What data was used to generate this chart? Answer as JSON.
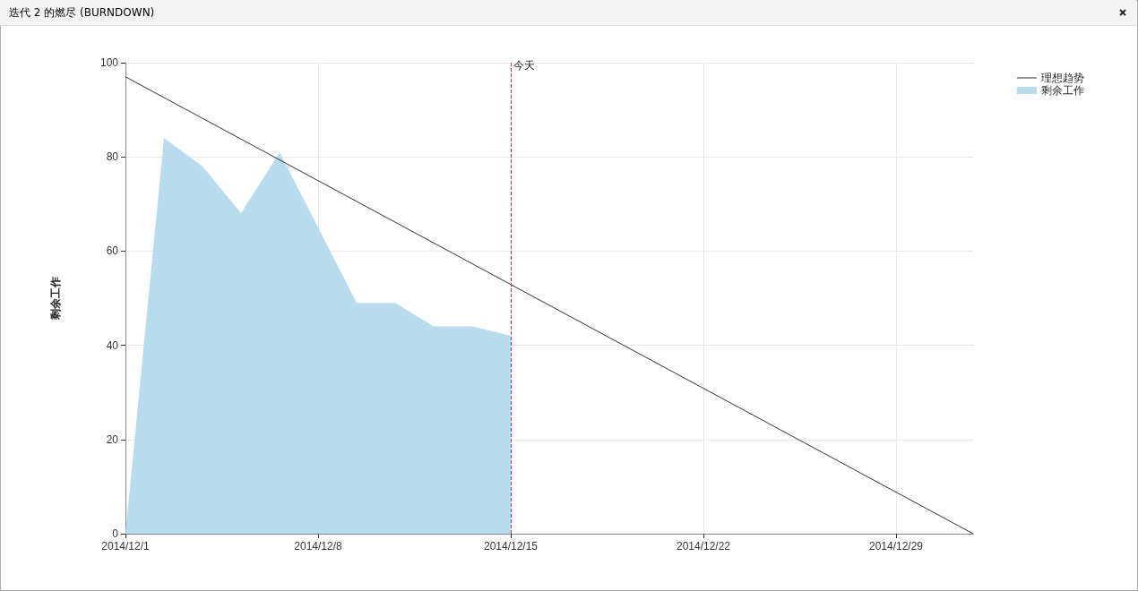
{
  "chart_data": {
    "type": "area",
    "title": "迭代 2 的燃尽 (BURNDOWN)",
    "ylabel": "剩余工作",
    "series": [
      {
        "name": "理想趋势",
        "type": "line",
        "color": "#333333",
        "x": [
          "2014-12-01",
          "2014-12-31T19:12"
        ],
        "values": [
          97,
          0
        ]
      },
      {
        "name": "剩余工作",
        "color": "#b8dcee",
        "x": [
          "2014-12-01",
          "2014-12-02T09:36",
          "2014-12-03T19:12",
          "2014-12-05T04:48",
          "2014-12-06T14:24",
          "2014-12-08",
          "2014-12-09T09:36",
          "2014-12-10T19:12",
          "2014-12-12T04:48",
          "2014-12-13T14:24",
          "2014-12-15"
        ],
        "values": [
          0,
          84,
          78,
          68,
          81,
          65,
          49,
          49,
          44,
          44,
          42
        ]
      }
    ],
    "xlim": [
      "2014-12-01",
      "2014-12-31T19:12"
    ],
    "xticks": [
      {
        "value": "2014-12-01",
        "label": "2014/12/1"
      },
      {
        "value": "2014-12-08",
        "label": "2014/12/8"
      },
      {
        "value": "2014-12-15",
        "label": "2014/12/15"
      },
      {
        "value": "2014-12-22",
        "label": "2014/12/22"
      },
      {
        "value": "2014-12-29",
        "label": "2014/12/29"
      }
    ],
    "ylim": [
      0,
      100
    ],
    "yticks": [
      0,
      20,
      40,
      60,
      80,
      100
    ],
    "ref_lines": [
      {
        "axis": "x",
        "value": "2014-12-15",
        "label": "今天",
        "color": "#c0305a",
        "line_style": "dashed"
      }
    ],
    "grid": true,
    "legend": "top right",
    "marker": "none",
    "line_style": "solid"
  }
}
